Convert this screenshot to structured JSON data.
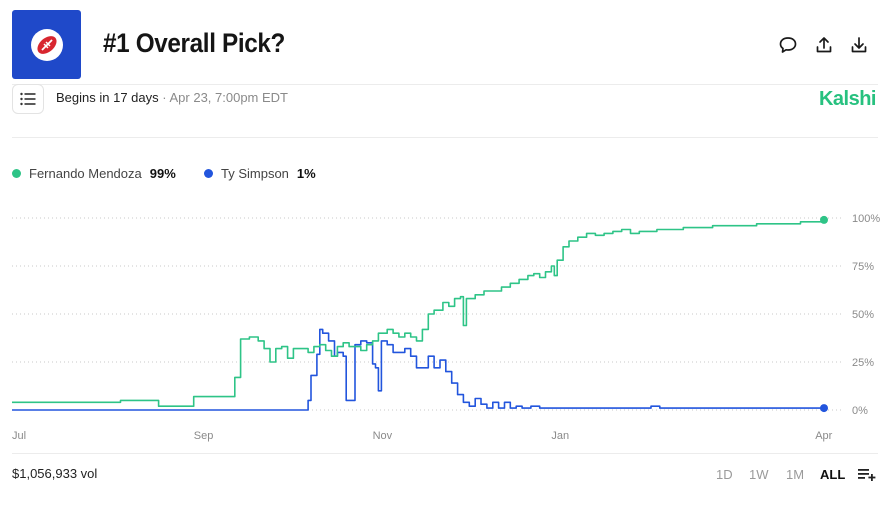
{
  "header": {
    "title": "#1 Overall Pick?",
    "begins_label": "Begins in 17 days",
    "separator": "·",
    "date_label": "Apr 23, 7:00pm EDT",
    "brand": "Kalshi"
  },
  "colors": {
    "logo_bg": "#1f49c9",
    "green": "#2ec487",
    "blue": "#2255dd",
    "brand": "#27c17f"
  },
  "icons": {
    "logo": "football-icon",
    "comment": "comment-icon",
    "share": "share-icon",
    "download": "download-icon",
    "list": "list-icon",
    "settings": "chart-settings-icon"
  },
  "legend": [
    {
      "name": "Fernando Mendoza",
      "value": "99%"
    },
    {
      "name": "Ty Simpson",
      "value": "1%"
    }
  ],
  "footer": {
    "volume": "$1,056,933 vol",
    "ranges": [
      "1D",
      "1W",
      "1M",
      "ALL"
    ],
    "active_range": "ALL"
  },
  "chart_data": {
    "type": "line",
    "x_start": "2025-07-01",
    "x_ticks": [
      "Jul",
      "Sep",
      "Nov",
      "Jan",
      "Apr"
    ],
    "y_ticks": [
      "0%",
      "25%",
      "50%",
      "75%",
      "100%"
    ],
    "ylim": [
      0,
      100
    ],
    "grid": true,
    "legend_position": "top-left",
    "series": [
      {
        "name": "Fernando Mendoza",
        "color": "#2ec487",
        "points": [
          [
            "2025-07-01",
            4
          ],
          [
            "2025-07-20",
            4
          ],
          [
            "2025-08-01",
            4
          ],
          [
            "2025-08-07",
            5
          ],
          [
            "2025-08-18",
            5
          ],
          [
            "2025-08-20",
            2
          ],
          [
            "2025-08-31",
            2
          ],
          [
            "2025-09-01",
            7
          ],
          [
            "2025-09-14",
            7
          ],
          [
            "2025-09-15",
            17
          ],
          [
            "2025-09-17",
            37
          ],
          [
            "2025-09-20",
            38
          ],
          [
            "2025-09-23",
            36
          ],
          [
            "2025-09-25",
            32
          ],
          [
            "2025-09-27",
            25
          ],
          [
            "2025-09-29",
            32
          ],
          [
            "2025-10-01",
            33
          ],
          [
            "2025-10-03",
            27
          ],
          [
            "2025-10-05",
            32
          ],
          [
            "2025-10-08",
            32
          ],
          [
            "2025-10-10",
            30
          ],
          [
            "2025-10-12",
            33
          ],
          [
            "2025-10-14",
            34
          ],
          [
            "2025-10-16",
            31
          ],
          [
            "2025-10-18",
            28
          ],
          [
            "2025-10-20",
            33
          ],
          [
            "2025-10-22",
            35
          ],
          [
            "2025-10-24",
            33
          ],
          [
            "2025-10-26",
            33
          ],
          [
            "2025-10-28",
            31
          ],
          [
            "2025-10-30",
            34
          ],
          [
            "2025-11-01",
            36
          ],
          [
            "2025-11-03",
            40
          ],
          [
            "2025-11-06",
            42
          ],
          [
            "2025-11-08",
            40
          ],
          [
            "2025-11-10",
            38
          ],
          [
            "2025-11-12",
            40
          ],
          [
            "2025-11-14",
            38
          ],
          [
            "2025-11-16",
            36
          ],
          [
            "2025-11-18",
            42
          ],
          [
            "2025-11-20",
            50
          ],
          [
            "2025-11-22",
            52
          ],
          [
            "2025-11-25",
            56
          ],
          [
            "2025-11-27",
            54
          ],
          [
            "2025-11-29",
            58
          ],
          [
            "2025-12-01",
            59
          ],
          [
            "2025-12-02",
            44
          ],
          [
            "2025-12-03",
            58
          ],
          [
            "2025-12-06",
            60
          ],
          [
            "2025-12-09",
            62
          ],
          [
            "2025-12-12",
            62
          ],
          [
            "2025-12-15",
            64
          ],
          [
            "2025-12-18",
            66
          ],
          [
            "2025-12-21",
            68
          ],
          [
            "2025-12-24",
            70
          ],
          [
            "2025-12-26",
            71
          ],
          [
            "2025-12-28",
            69
          ],
          [
            "2025-12-30",
            72
          ],
          [
            "2026-01-01",
            75
          ],
          [
            "2026-01-02",
            70
          ],
          [
            "2026-01-03",
            78
          ],
          [
            "2026-01-05",
            85
          ],
          [
            "2026-01-07",
            88
          ],
          [
            "2026-01-10",
            90
          ],
          [
            "2026-01-13",
            92
          ],
          [
            "2026-01-16",
            91
          ],
          [
            "2026-01-19",
            92
          ],
          [
            "2026-01-22",
            93
          ],
          [
            "2026-01-25",
            94
          ],
          [
            "2026-01-28",
            92
          ],
          [
            "2026-01-31",
            93
          ],
          [
            "2026-02-03",
            93
          ],
          [
            "2026-02-06",
            94
          ],
          [
            "2026-02-09",
            94
          ],
          [
            "2026-02-12",
            94
          ],
          [
            "2026-02-15",
            95
          ],
          [
            "2026-02-20",
            95
          ],
          [
            "2026-02-25",
            96
          ],
          [
            "2026-03-02",
            96
          ],
          [
            "2026-03-07",
            96
          ],
          [
            "2026-03-12",
            97
          ],
          [
            "2026-03-17",
            97
          ],
          [
            "2026-03-22",
            97
          ],
          [
            "2026-03-27",
            98
          ],
          [
            "2026-04-01",
            98
          ],
          [
            "2026-04-04",
            99
          ]
        ]
      },
      {
        "name": "Ty Simpson",
        "color": "#2255dd",
        "points": [
          [
            "2025-07-01",
            0
          ],
          [
            "2025-10-09",
            0
          ],
          [
            "2025-10-10",
            5
          ],
          [
            "2025-10-11",
            18
          ],
          [
            "2025-10-13",
            29
          ],
          [
            "2025-10-14",
            42
          ],
          [
            "2025-10-15",
            40
          ],
          [
            "2025-10-17",
            36
          ],
          [
            "2025-10-19",
            28
          ],
          [
            "2025-10-20",
            30
          ],
          [
            "2025-10-22",
            28
          ],
          [
            "2025-10-23",
            5
          ],
          [
            "2025-10-25",
            5
          ],
          [
            "2025-10-26",
            34
          ],
          [
            "2025-10-28",
            36
          ],
          [
            "2025-10-30",
            35
          ],
          [
            "2025-11-01",
            24
          ],
          [
            "2025-11-02",
            22
          ],
          [
            "2025-11-03",
            10
          ],
          [
            "2025-11-04",
            36
          ],
          [
            "2025-11-06",
            34
          ],
          [
            "2025-11-08",
            30
          ],
          [
            "2025-11-10",
            30
          ],
          [
            "2025-11-12",
            32
          ],
          [
            "2025-11-14",
            28
          ],
          [
            "2025-11-16",
            22
          ],
          [
            "2025-11-18",
            22
          ],
          [
            "2025-11-20",
            28
          ],
          [
            "2025-11-22",
            22
          ],
          [
            "2025-11-24",
            26
          ],
          [
            "2025-11-26",
            20
          ],
          [
            "2025-11-28",
            14
          ],
          [
            "2025-11-30",
            8
          ],
          [
            "2025-12-02",
            4
          ],
          [
            "2025-12-04",
            2
          ],
          [
            "2025-12-06",
            6
          ],
          [
            "2025-12-08",
            3
          ],
          [
            "2025-12-10",
            1
          ],
          [
            "2025-12-12",
            4
          ],
          [
            "2025-12-14",
            1
          ],
          [
            "2025-12-16",
            4
          ],
          [
            "2025-12-18",
            1
          ],
          [
            "2025-12-20",
            2
          ],
          [
            "2025-12-22",
            1
          ],
          [
            "2025-12-25",
            2
          ],
          [
            "2025-12-28",
            1
          ],
          [
            "2026-01-10",
            1
          ],
          [
            "2026-01-31",
            1
          ],
          [
            "2026-02-04",
            2
          ],
          [
            "2026-02-07",
            1
          ],
          [
            "2026-03-01",
            1
          ],
          [
            "2026-04-04",
            1
          ]
        ]
      }
    ]
  }
}
